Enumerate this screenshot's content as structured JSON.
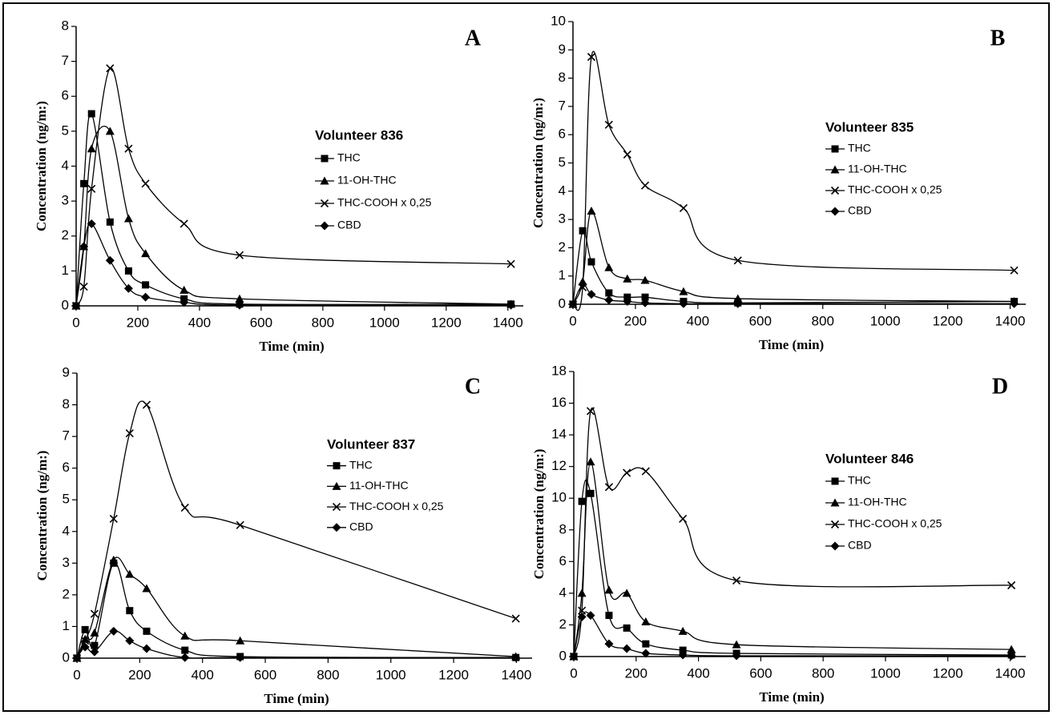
{
  "chart_data": [
    {
      "type": "line",
      "label": "A",
      "legend_title": "Volunteer 836",
      "x_label": "Time (min)",
      "y_label": "Concentration (ng/m:)",
      "x": [
        0,
        25,
        50,
        110,
        170,
        225,
        350,
        530,
        1410
      ],
      "xlim": [
        0,
        1450
      ],
      "xticks": [
        0,
        200,
        400,
        600,
        800,
        1000,
        1200,
        1400
      ],
      "ylim": [
        0,
        8
      ],
      "yticks": [
        0,
        1,
        2,
        3,
        4,
        5,
        6,
        7,
        8
      ],
      "series": [
        {
          "name": "THC",
          "marker": "square",
          "color": "#000000",
          "values": [
            0,
            3.5,
            5.5,
            2.4,
            1.0,
            0.6,
            0.2,
            0.05,
            0.05
          ]
        },
        {
          "name": "11-OH-THC",
          "marker": "triangle",
          "color": "#000000",
          "values": [
            0,
            1.7,
            4.5,
            5.0,
            2.5,
            1.5,
            0.45,
            0.2,
            0.05
          ]
        },
        {
          "name": "THC-COOH x 0,25",
          "marker": "cross",
          "color": "#000000",
          "values": [
            0,
            0.55,
            3.35,
            6.8,
            4.5,
            3.5,
            2.35,
            1.45,
            1.2
          ]
        },
        {
          "name": "CBD",
          "marker": "diamond",
          "color": "#000000",
          "values": [
            0,
            1.7,
            2.35,
            1.3,
            0.5,
            0.25,
            0.1,
            0.02,
            0.02
          ]
        }
      ]
    },
    {
      "type": "line",
      "label": "B",
      "legend_title": "Volunteer 835",
      "x_label": "Time (min)",
      "y_label": "Concentration (ng/m:)",
      "x": [
        0,
        31,
        59,
        115,
        174,
        231,
        354,
        528,
        1413
      ],
      "xlim": [
        0,
        1450
      ],
      "xticks": [
        0,
        200,
        400,
        600,
        800,
        1000,
        1200,
        1400
      ],
      "ylim": [
        0,
        10
      ],
      "yticks": [
        0,
        1,
        2,
        3,
        4,
        5,
        6,
        7,
        8,
        9,
        10
      ],
      "series": [
        {
          "name": "THC",
          "marker": "square",
          "color": "#000000",
          "values": [
            0,
            2.6,
            1.5,
            0.4,
            0.25,
            0.25,
            0.1,
            0.05,
            0.1
          ]
        },
        {
          "name": "11-OH-THC",
          "marker": "triangle",
          "color": "#000000",
          "values": [
            0,
            0.8,
            3.3,
            1.3,
            0.9,
            0.85,
            0.45,
            0.2,
            0.1
          ]
        },
        {
          "name": "THC-COOH x 0,25",
          "marker": "cross",
          "color": "#000000",
          "values": [
            0,
            0.6,
            8.75,
            6.35,
            5.3,
            4.2,
            3.4,
            1.55,
            1.2
          ]
        },
        {
          "name": "CBD",
          "marker": "diamond",
          "color": "#000000",
          "values": [
            0,
            0.7,
            0.35,
            0.15,
            0.1,
            0.05,
            0.02,
            0.02,
            0.02
          ]
        }
      ]
    },
    {
      "type": "line",
      "label": "C",
      "legend_title": "Volunteer 837",
      "x_label": "Time (min)",
      "y_label": "Concentration (ng/m:)",
      "x": [
        0,
        26,
        56,
        117,
        168,
        222,
        344,
        520,
        1398
      ],
      "xlim": [
        0,
        1450
      ],
      "xticks": [
        0,
        200,
        400,
        600,
        800,
        1000,
        1200,
        1400
      ],
      "ylim": [
        0,
        9
      ],
      "yticks": [
        0,
        1,
        2,
        3,
        4,
        5,
        6,
        7,
        8,
        9
      ],
      "series": [
        {
          "name": "THC",
          "marker": "square",
          "color": "#000000",
          "values": [
            0,
            0.9,
            0.4,
            3.0,
            1.5,
            0.85,
            0.25,
            0.05,
            0.02
          ]
        },
        {
          "name": "11-OH-THC",
          "marker": "triangle",
          "color": "#000000",
          "values": [
            0,
            0.6,
            0.8,
            3.1,
            2.65,
            2.2,
            0.7,
            0.55,
            0.05
          ]
        },
        {
          "name": "THC-COOH x 0,25",
          "marker": "cross",
          "color": "#000000",
          "values": [
            0,
            0.55,
            1.4,
            4.4,
            7.1,
            8.0,
            4.75,
            4.2,
            1.25
          ]
        },
        {
          "name": "CBD",
          "marker": "diamond",
          "color": "#000000",
          "values": [
            0,
            0.35,
            0.2,
            0.85,
            0.55,
            0.3,
            0.02,
            0.02,
            0.02
          ]
        }
      ]
    },
    {
      "type": "line",
      "label": "D",
      "legend_title": "Volunteer 846",
      "x_label": "Time (min)",
      "y_label": "Concentration (ng/m:)",
      "x": [
        0,
        26,
        54,
        113,
        170,
        231,
        350,
        522,
        1404
      ],
      "xlim": [
        0,
        1450
      ],
      "xticks": [
        0,
        200,
        400,
        600,
        800,
        1000,
        1200,
        1400
      ],
      "ylim": [
        0,
        18
      ],
      "yticks": [
        0,
        2,
        4,
        6,
        8,
        10,
        12,
        14,
        16,
        18
      ],
      "series": [
        {
          "name": "THC",
          "marker": "square",
          "color": "#000000",
          "values": [
            0,
            9.8,
            10.3,
            2.6,
            1.8,
            0.8,
            0.4,
            0.2,
            0.1
          ]
        },
        {
          "name": "11-OH-THC",
          "marker": "triangle",
          "color": "#000000",
          "values": [
            0,
            4.0,
            12.3,
            4.2,
            4.0,
            2.2,
            1.6,
            0.75,
            0.45
          ]
        },
        {
          "name": "THC-COOH x 0,25",
          "marker": "cross",
          "color": "#000000",
          "values": [
            0,
            2.9,
            15.5,
            10.7,
            11.6,
            11.7,
            8.7,
            4.8,
            4.5
          ]
        },
        {
          "name": "CBD",
          "marker": "diamond",
          "color": "#000000",
          "values": [
            0,
            2.5,
            2.6,
            0.8,
            0.5,
            0.2,
            0.1,
            0.05,
            0.05
          ]
        }
      ]
    }
  ]
}
